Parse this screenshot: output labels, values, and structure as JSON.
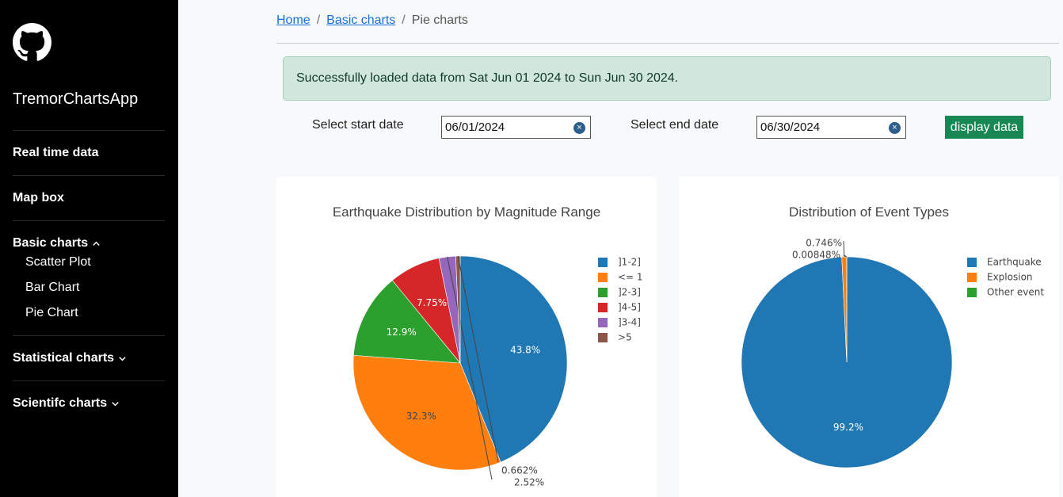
{
  "sidebar": {
    "app_name": "TremorChartsApp",
    "logo_icon": "github-icon",
    "items": [
      {
        "label": "Real time data"
      },
      {
        "label": "Map box"
      },
      {
        "label": "Basic charts",
        "expanded": true,
        "children": [
          {
            "label": "Scatter Plot"
          },
          {
            "label": "Bar Chart"
          },
          {
            "label": "Pie Chart"
          }
        ]
      },
      {
        "label": "Statistical charts",
        "expanded": false
      },
      {
        "label": "Scientifc charts",
        "expanded": false
      }
    ]
  },
  "breadcrumb": {
    "items": [
      {
        "label": "Home",
        "link": true
      },
      {
        "label": "Basic charts",
        "link": true
      },
      {
        "label": "Pie charts",
        "link": false
      }
    ],
    "separator": "/"
  },
  "alert": {
    "message": "Successfully loaded data from Sat Jun 01 2024 to Sun Jun 30 2024."
  },
  "controls": {
    "start_label": "Select start date",
    "start_value": "06/01/2024",
    "end_label": "Select end date",
    "end_value": "06/30/2024",
    "clear_symbol": "×",
    "display_button": "display data"
  },
  "colors": {
    "blue": "#1f77b4",
    "orange": "#ff7f0e",
    "green": "#2ca02c",
    "red": "#d62728",
    "purple": "#9467bd",
    "brown": "#8c564b",
    "button": "#198754",
    "alert_bg": "#d1e7dd"
  },
  "chart_data": [
    {
      "type": "pie",
      "title": "Earthquake Distribution by Magnitude Range",
      "legend_position": "right",
      "slices": [
        {
          "label": "]1-2]",
          "value": 43.8,
          "text": "43.8%",
          "color": "#1f77b4"
        },
        {
          "label": "<= 1",
          "value": 32.3,
          "text": "32.3%",
          "color": "#ff7f0e"
        },
        {
          "label": "]2-3]",
          "value": 12.9,
          "text": "12.9%",
          "color": "#2ca02c"
        },
        {
          "label": "]4-5]",
          "value": 7.75,
          "text": "7.75%",
          "color": "#d62728"
        },
        {
          "label": "]3-4]",
          "value": 2.52,
          "text": "2.52%",
          "color": "#9467bd"
        },
        {
          "label": ">5",
          "value": 0.662,
          "text": "0.662%",
          "color": "#8c564b"
        }
      ]
    },
    {
      "type": "pie",
      "title": "Distribution of Event Types",
      "legend_position": "right",
      "slices": [
        {
          "label": "Earthquake",
          "value": 99.2,
          "text": "99.2%",
          "color": "#1f77b4"
        },
        {
          "label": "Explosion",
          "value": 0.746,
          "text": "0.746%",
          "color": "#ff7f0e"
        },
        {
          "label": "Other event",
          "value": 0.00848,
          "text": "0.00848%",
          "color": "#2ca02c"
        }
      ]
    }
  ]
}
